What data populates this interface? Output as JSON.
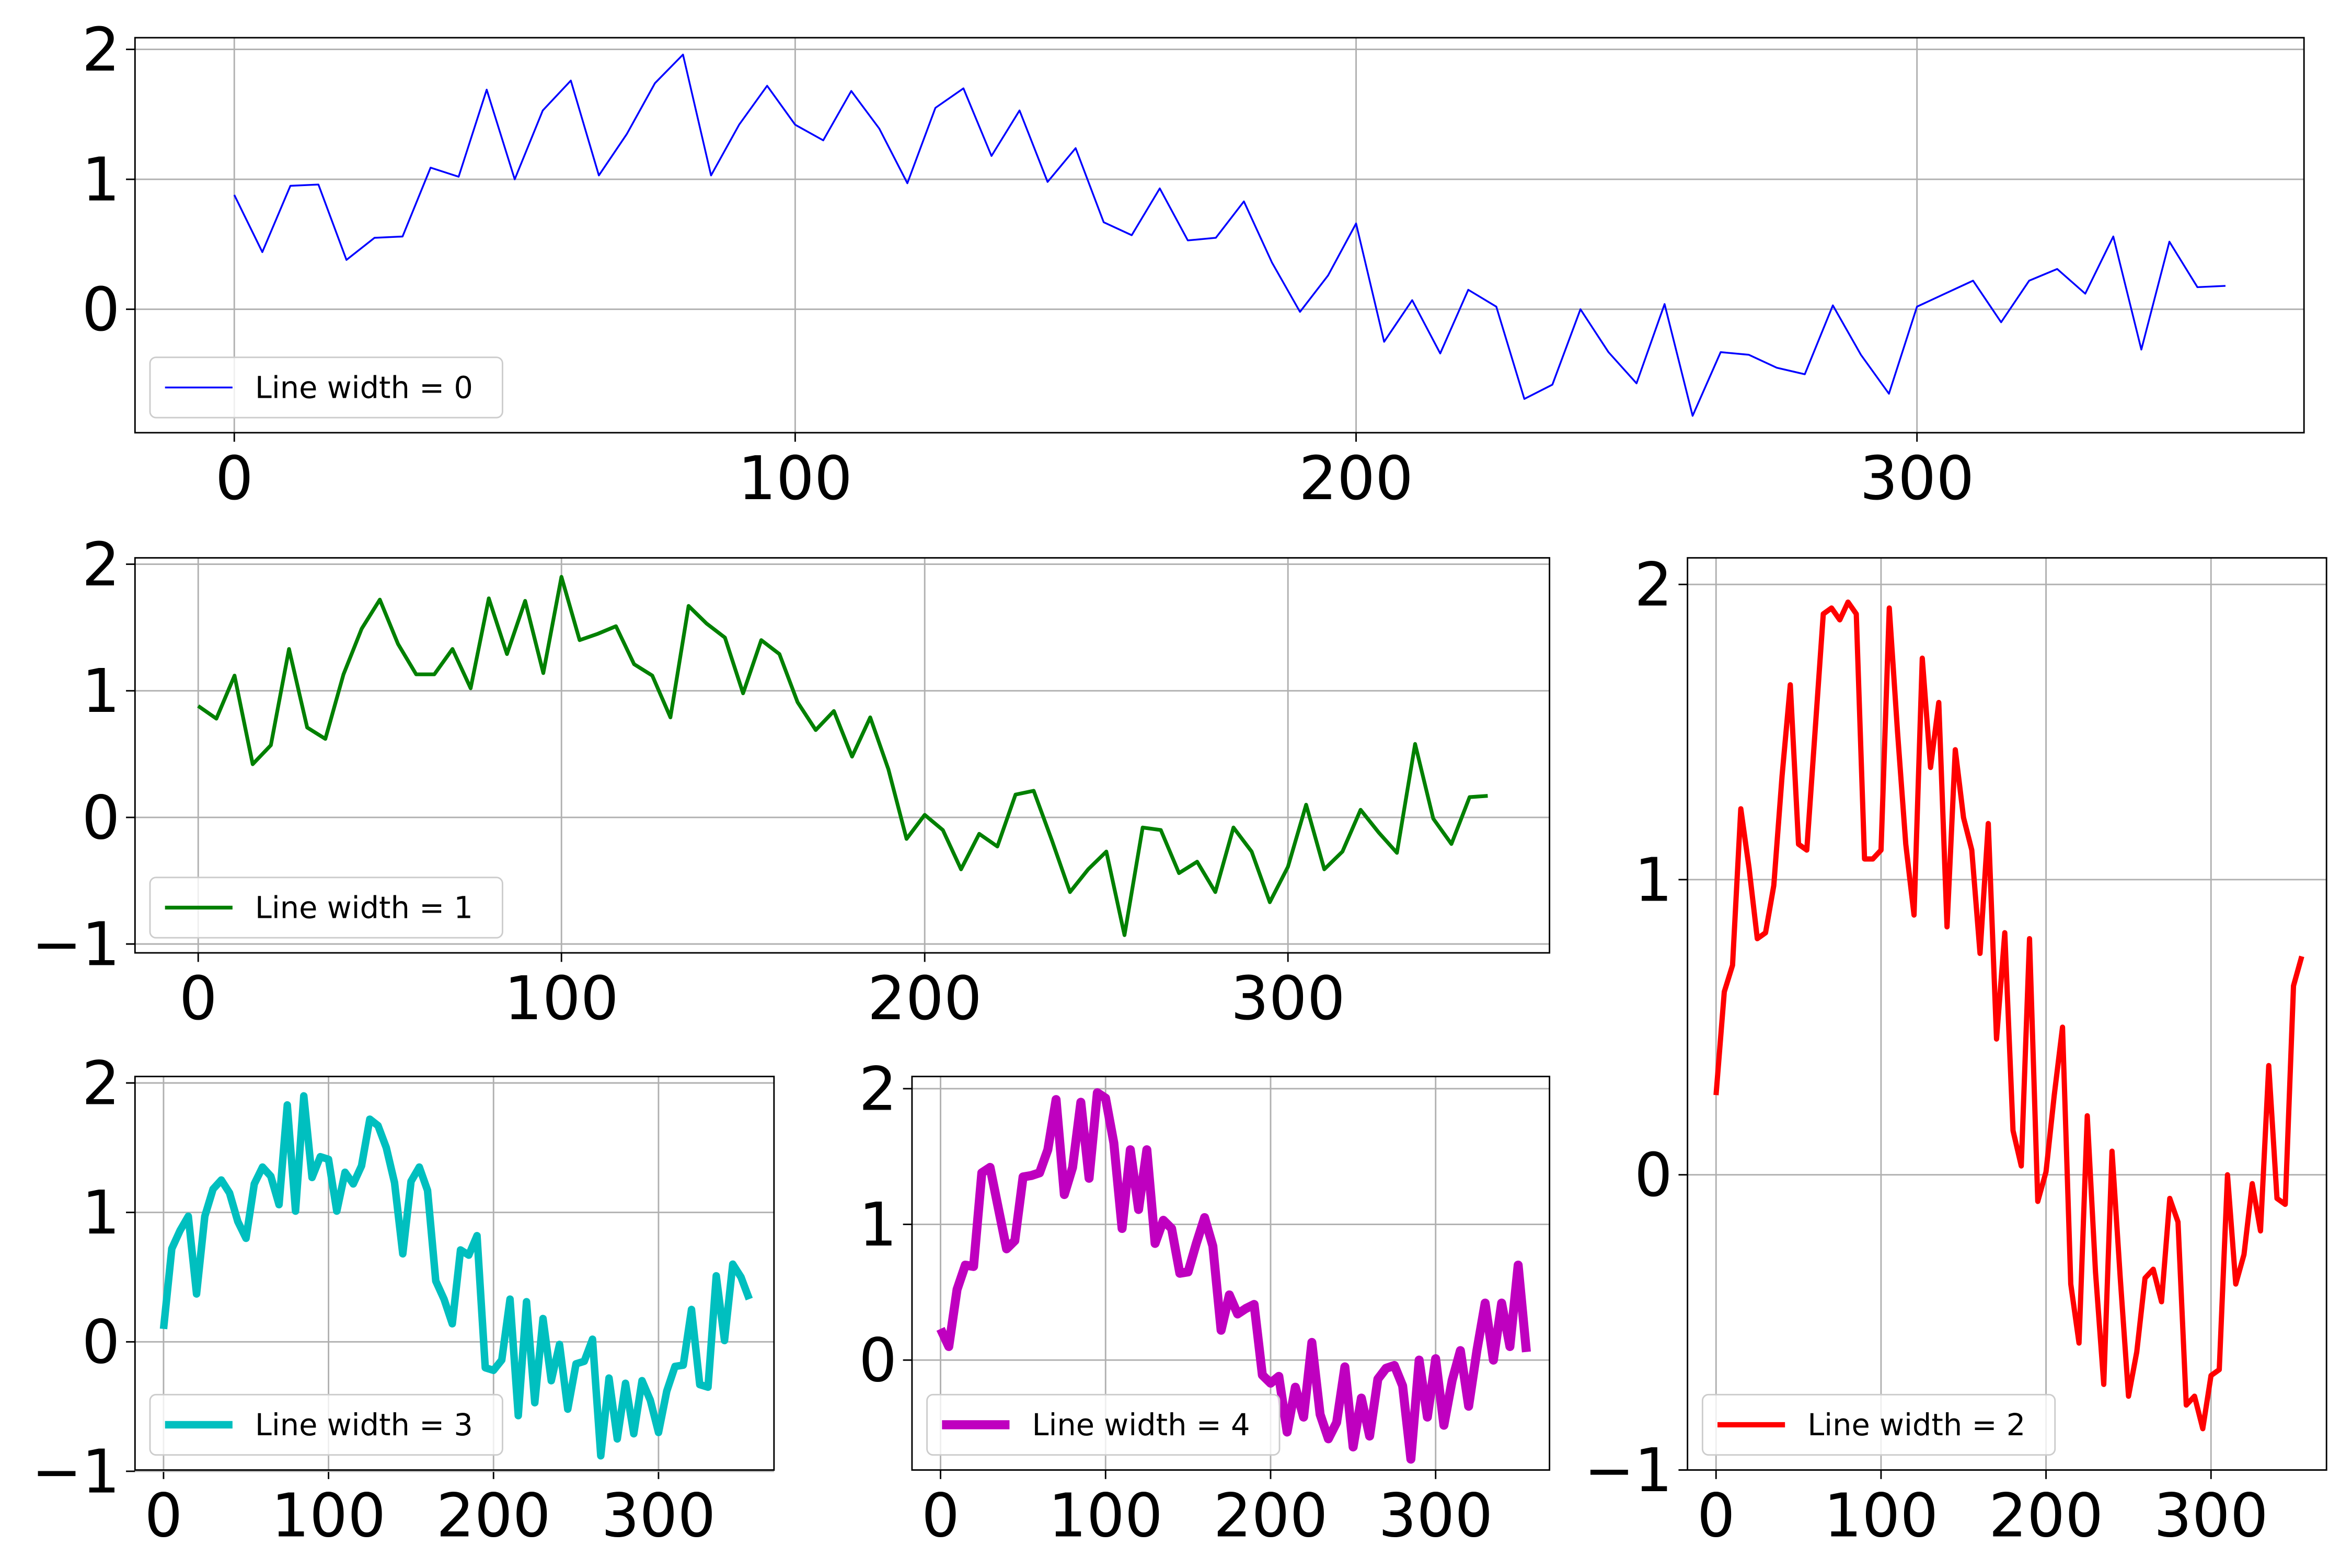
{
  "chart_data": [
    {
      "type": "line",
      "x": [
        0,
        5,
        10,
        15,
        20,
        25,
        30,
        35,
        40,
        45,
        50,
        55,
        60,
        65,
        70,
        75,
        80,
        85,
        90,
        95,
        100,
        105,
        110,
        115,
        120,
        125,
        130,
        135,
        140,
        145,
        150,
        155,
        160,
        165,
        170,
        175,
        180,
        185,
        190,
        195,
        200,
        205,
        210,
        215,
        220,
        225,
        230,
        235,
        240,
        245,
        250,
        255,
        260,
        265,
        270,
        275,
        280,
        285,
        290,
        295,
        300,
        305,
        310,
        315,
        320,
        325,
        330,
        335,
        340,
        345,
        350,
        355
      ],
      "series": [
        {
          "name": "Line width = 0",
          "color": "#0000ff",
          "values": [
            0.88,
            0.44,
            0.95,
            0.96,
            0.38,
            0.55,
            0.56,
            1.09,
            1.02,
            1.69,
            1.0,
            1.53,
            1.76,
            1.03,
            1.35,
            1.74,
            1.96,
            1.03,
            1.42,
            1.72,
            1.42,
            1.3,
            1.68,
            1.39,
            0.97,
            1.55,
            1.7,
            1.18,
            1.53,
            0.98,
            1.24,
            0.67,
            0.57,
            0.93,
            0.53,
            0.55,
            0.83,
            0.36,
            -0.02,
            0.26,
            0.66,
            -0.25,
            0.07,
            -0.34,
            0.15,
            0.02,
            -0.69,
            -0.58,
            0.0,
            -0.33,
            -0.57,
            0.04,
            -0.82,
            -0.33,
            -0.35,
            -0.45,
            -0.5,
            0.03,
            -0.35,
            -0.65,
            0.02,
            0.12,
            0.22,
            -0.1,
            0.22,
            0.31,
            0.12,
            0.56,
            -0.31,
            0.52,
            0.17,
            0.18
          ]
        }
      ],
      "xlim": [
        -17.7,
        369
      ],
      "ylim": [
        -0.95,
        2.09
      ],
      "xticks": [
        0,
        100,
        200,
        300
      ],
      "yticks": [
        0,
        1,
        2
      ],
      "grid": true,
      "legend": "lower left"
    },
    {
      "type": "line",
      "x": [
        0,
        5,
        10,
        15,
        20,
        25,
        30,
        35,
        40,
        45,
        50,
        55,
        60,
        65,
        70,
        75,
        80,
        85,
        90,
        95,
        100,
        105,
        110,
        115,
        120,
        125,
        130,
        135,
        140,
        145,
        150,
        155,
        160,
        165,
        170,
        175,
        180,
        185,
        190,
        195,
        200,
        205,
        210,
        215,
        220,
        225,
        230,
        235,
        240,
        245,
        250,
        255,
        260,
        265,
        270,
        275,
        280,
        285,
        290,
        295,
        300,
        305,
        310,
        315,
        320,
        325,
        330,
        335,
        340,
        345,
        350,
        355
      ],
      "series": [
        {
          "name": "Line width = 1",
          "color": "#008000",
          "values": [
            0.88,
            0.78,
            1.12,
            0.42,
            0.57,
            1.33,
            0.71,
            0.62,
            1.13,
            1.49,
            1.72,
            1.37,
            1.13,
            1.13,
            1.33,
            1.02,
            1.73,
            1.29,
            1.71,
            1.14,
            1.9,
            1.4,
            1.45,
            1.51,
            1.21,
            1.12,
            0.79,
            1.67,
            1.53,
            1.42,
            0.98,
            1.4,
            1.29,
            0.91,
            0.69,
            0.84,
            0.48,
            0.79,
            0.38,
            -0.17,
            0.02,
            -0.1,
            -0.41,
            -0.13,
            -0.23,
            0.18,
            0.21,
            -0.18,
            -0.59,
            -0.41,
            -0.27,
            -0.93,
            -0.08,
            -0.1,
            -0.44,
            -0.35,
            -0.59,
            -0.08,
            -0.27,
            -0.67,
            -0.39,
            0.1,
            -0.41,
            -0.27,
            0.06,
            -0.12,
            -0.28,
            0.58,
            -0.01,
            -0.21,
            0.16,
            0.17
          ]
        }
      ],
      "xlim": [
        -17.4,
        372
      ],
      "ylim": [
        -1.07,
        2.05
      ],
      "xticks": [
        0,
        100,
        200,
        300
      ],
      "yticks": [
        {
          "value": -1,
          "label": "−1"
        },
        0,
        1,
        2
      ],
      "grid": true,
      "legend": "lower left"
    },
    {
      "type": "line",
      "x": [
        0,
        5,
        10,
        15,
        20,
        25,
        30,
        35,
        40,
        45,
        50,
        55,
        60,
        65,
        70,
        75,
        80,
        85,
        90,
        95,
        100,
        105,
        110,
        115,
        120,
        125,
        130,
        135,
        140,
        145,
        150,
        155,
        160,
        165,
        170,
        175,
        180,
        185,
        190,
        195,
        200,
        205,
        210,
        215,
        220,
        225,
        230,
        235,
        240,
        245,
        250,
        255,
        260,
        265,
        270,
        275,
        280,
        285,
        290,
        295,
        300,
        305,
        310,
        315,
        320,
        325,
        330,
        335,
        340,
        345,
        350,
        355
      ],
      "series": [
        {
          "name": "Line width = 2",
          "color": "#ff0000",
          "values": [
            0.27,
            0.62,
            0.71,
            1.24,
            1.04,
            0.8,
            0.82,
            0.98,
            1.35,
            1.66,
            1.12,
            1.1,
            1.5,
            1.9,
            1.92,
            1.88,
            1.94,
            1.9,
            1.07,
            1.07,
            1.1,
            1.92,
            1.5,
            1.12,
            0.88,
            1.75,
            1.38,
            1.6,
            0.84,
            1.44,
            1.21,
            1.1,
            0.75,
            1.19,
            0.46,
            0.82,
            0.15,
            0.03,
            0.8,
            -0.09,
            0.01,
            0.27,
            0.5,
            -0.37,
            -0.57,
            0.2,
            -0.33,
            -0.71,
            0.08,
            -0.35,
            -0.75,
            -0.6,
            -0.35,
            -0.32,
            -0.43,
            -0.08,
            -0.16,
            -0.78,
            -0.75,
            -0.86,
            -0.68,
            -0.66,
            0.0,
            -0.37,
            -0.27,
            -0.03,
            -0.19,
            0.37,
            -0.08,
            -0.1,
            0.64,
            0.74
          ]
        }
      ],
      "xlim": [
        -17.3,
        370
      ],
      "ylim": [
        -1.0,
        2.09
      ],
      "xticks": [
        0,
        100,
        200,
        300
      ],
      "yticks": [
        {
          "value": -1,
          "label": "−1"
        },
        0,
        1,
        2
      ],
      "grid": true,
      "legend": "lower left"
    },
    {
      "type": "line",
      "x": [
        0,
        5,
        10,
        15,
        20,
        25,
        30,
        35,
        40,
        45,
        50,
        55,
        60,
        65,
        70,
        75,
        80,
        85,
        90,
        95,
        100,
        105,
        110,
        115,
        120,
        125,
        130,
        135,
        140,
        145,
        150,
        155,
        160,
        165,
        170,
        175,
        180,
        185,
        190,
        195,
        200,
        205,
        210,
        215,
        220,
        225,
        230,
        235,
        240,
        245,
        250,
        255,
        260,
        265,
        270,
        275,
        280,
        285,
        290,
        295,
        300,
        305,
        310,
        315,
        320,
        325,
        330,
        335,
        340,
        345,
        350,
        355
      ],
      "series": [
        {
          "name": "Line width = 3",
          "color": "#00bfbf",
          "values": [
            0.1,
            0.72,
            0.86,
            0.97,
            0.37,
            0.97,
            1.18,
            1.25,
            1.15,
            0.93,
            0.8,
            1.22,
            1.35,
            1.28,
            1.06,
            1.83,
            1.01,
            1.9,
            1.27,
            1.43,
            1.41,
            1.01,
            1.31,
            1.22,
            1.36,
            1.72,
            1.67,
            1.5,
            1.23,
            0.68,
            1.24,
            1.35,
            1.17,
            0.47,
            0.33,
            0.14,
            0.71,
            0.67,
            0.82,
            -0.2,
            -0.22,
            -0.14,
            0.33,
            -0.57,
            0.31,
            -0.47,
            0.18,
            -0.3,
            -0.02,
            -0.52,
            -0.17,
            -0.15,
            0.02,
            -0.88,
            -0.28,
            -0.75,
            -0.32,
            -0.71,
            -0.3,
            -0.45,
            -0.7,
            -0.38,
            -0.19,
            -0.18,
            0.25,
            -0.33,
            -0.35,
            0.51,
            0.01,
            0.6,
            0.5,
            0.33
          ]
        }
      ],
      "xlim": [
        -17.3,
        370
      ],
      "ylim": [
        -0.99,
        2.05
      ],
      "xticks": [
        0,
        100,
        200,
        300
      ],
      "yticks": [
        {
          "value": -1,
          "label": "−1"
        },
        0,
        1,
        2
      ],
      "grid": true,
      "legend": "lower left"
    },
    {
      "type": "line",
      "x": [
        0,
        5,
        10,
        15,
        20,
        25,
        30,
        35,
        40,
        45,
        50,
        55,
        60,
        65,
        70,
        75,
        80,
        85,
        90,
        95,
        100,
        105,
        110,
        115,
        120,
        125,
        130,
        135,
        140,
        145,
        150,
        155,
        160,
        165,
        170,
        175,
        180,
        185,
        190,
        195,
        200,
        205,
        210,
        215,
        220,
        225,
        230,
        235,
        240,
        245,
        250,
        255,
        260,
        265,
        270,
        275,
        280,
        285,
        290,
        295,
        300,
        305,
        310,
        315,
        320,
        325,
        330,
        335,
        340,
        345,
        350,
        355
      ],
      "series": [
        {
          "name": "Line width = 4",
          "color": "#bf00bf",
          "values": [
            0.23,
            0.1,
            0.52,
            0.7,
            0.69,
            1.38,
            1.42,
            1.12,
            0.82,
            0.88,
            1.35,
            1.36,
            1.38,
            1.55,
            1.92,
            1.22,
            1.42,
            1.9,
            1.34,
            1.97,
            1.93,
            1.6,
            0.97,
            1.55,
            1.11,
            1.55,
            0.86,
            1.03,
            0.97,
            0.64,
            0.65,
            0.86,
            1.05,
            0.84,
            0.22,
            0.48,
            0.34,
            0.38,
            0.41,
            -0.11,
            -0.17,
            -0.12,
            -0.53,
            -0.2,
            -0.42,
            0.13,
            -0.4,
            -0.58,
            -0.46,
            -0.05,
            -0.64,
            -0.28,
            -0.56,
            -0.14,
            -0.06,
            -0.04,
            -0.19,
            -0.73,
            0.0,
            -0.42,
            0.01,
            -0.48,
            -0.15,
            0.07,
            -0.34,
            0.07,
            0.42,
            0.0,
            0.42,
            0.1,
            0.7,
            0.06
          ]
        }
      ],
      "xlim": [
        -17.3,
        369
      ],
      "ylim": [
        -0.81,
        2.09
      ],
      "xticks": [
        0,
        100,
        200,
        300
      ],
      "yticks": [
        0,
        1,
        2
      ],
      "grid": true,
      "legend": "lower left"
    }
  ]
}
